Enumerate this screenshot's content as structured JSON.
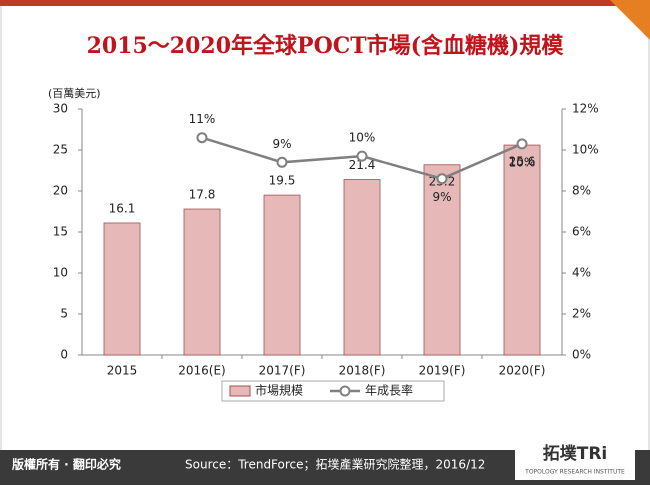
{
  "chart_data": {
    "type": "bar",
    "title": "2015～2020年全球POCT市場(含血糖機)規模",
    "y_unit_label": "(百萬美元)",
    "categories": [
      "2015",
      "2016(E)",
      "2017(F)",
      "2018(F)",
      "2019(F)",
      "2020(F)"
    ],
    "series": [
      {
        "name": "市場規模",
        "type": "bar",
        "color": "#e6b9b8",
        "values": [
          16.1,
          17.8,
          19.5,
          21.4,
          23.2,
          25.6
        ]
      },
      {
        "name": "年成長率",
        "type": "line",
        "axis": "y2",
        "color": "#808080",
        "values": [
          null,
          10.6,
          9.4,
          9.7,
          8.6,
          10.3
        ],
        "value_labels": [
          null,
          "11%",
          "9%",
          "10%",
          "9%",
          "10%"
        ]
      }
    ],
    "ylim": [
      0,
      30
    ],
    "yticks": [
      0,
      5,
      10,
      15,
      20,
      25,
      30
    ],
    "y2lim": [
      0,
      12
    ],
    "y2ticks": [
      {
        "value": 0,
        "label": "0%"
      },
      {
        "value": 2,
        "label": "2%"
      },
      {
        "value": 4,
        "label": "4%"
      },
      {
        "value": 6,
        "label": "6%"
      },
      {
        "value": 8,
        "label": "8%"
      },
      {
        "value": 10,
        "label": "10%"
      },
      {
        "value": 12,
        "label": "12%"
      }
    ]
  },
  "footer": {
    "copyright": "版權所有 · 翻印必究",
    "source": "Source：TrendForce；拓墣產業研究院整理，2016/12",
    "logo": "拓墣TRi",
    "logo_sub": "TOPOLOGY RESEARCH INSTITUTE"
  }
}
